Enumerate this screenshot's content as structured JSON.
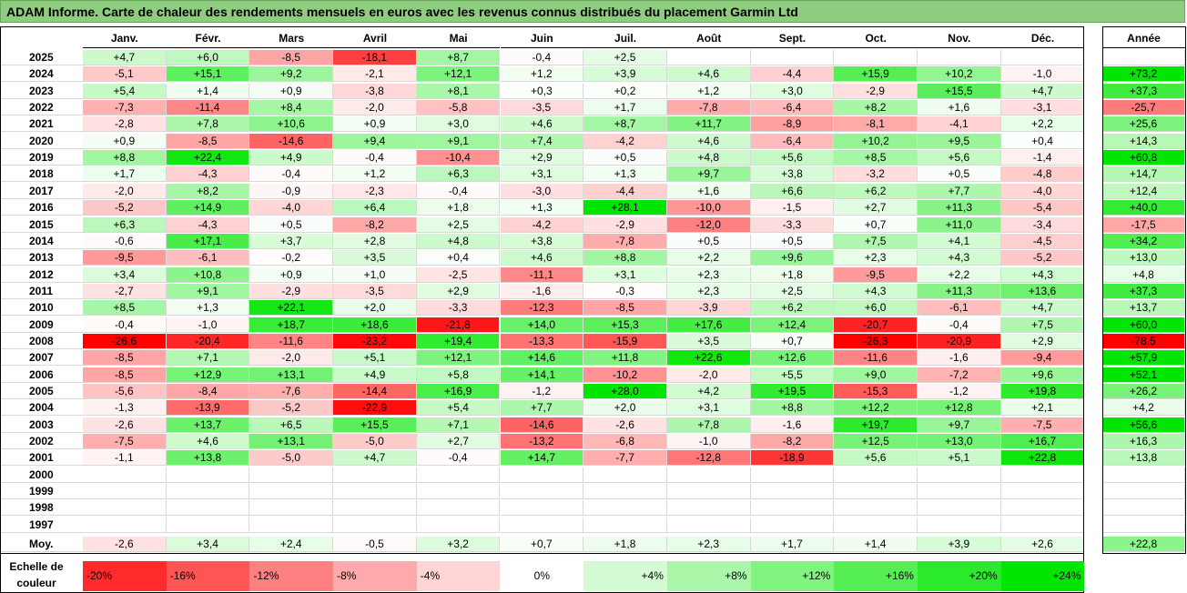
{
  "title": "ADAM Informe. Carte de chaleur des rendements mensuels en euros avec les revenus connus distribués du placement Garmin Ltd",
  "chart_data": {
    "type": "heatmap",
    "title": "ADAM Informe. Carte de chaleur des rendements mensuels en euros avec les revenus connus distribués du placement Garmin Ltd",
    "columns": [
      "Janv.",
      "Févr.",
      "Mars",
      "Avril",
      "Mai",
      "Juin",
      "Juil.",
      "Août",
      "Sept.",
      "Oct.",
      "Nov.",
      "Déc."
    ],
    "annual_header": "Année",
    "rows": [
      {
        "year": "2025",
        "values": [
          "+4,7",
          "+6,0",
          "-8,5",
          "-18,1",
          "+8,7",
          "-0,4",
          "+2,5",
          "",
          "",
          "",
          "",
          ""
        ],
        "annual": ""
      },
      {
        "year": "2024",
        "values": [
          "-5,1",
          "+15,1",
          "+9,2",
          "-2,1",
          "+12,1",
          "+1,2",
          "+3,9",
          "+4,6",
          "-4,4",
          "+15,9",
          "+10,2",
          "-1,0"
        ],
        "annual": "+73,2"
      },
      {
        "year": "2023",
        "values": [
          "+5,4",
          "+1,4",
          "+0,9",
          "-3,8",
          "+8,1",
          "+0,3",
          "+0,2",
          "+1,2",
          "+3,0",
          "-2,9",
          "+15,5",
          "+4,7"
        ],
        "annual": "+37,3"
      },
      {
        "year": "2022",
        "values": [
          "-7,3",
          "-11,4",
          "+8,4",
          "-2,0",
          "-5,8",
          "-3,5",
          "+1,7",
          "-7,8",
          "-6,4",
          "+8,2",
          "+1,6",
          "-3,1"
        ],
        "annual": "-25,7"
      },
      {
        "year": "2021",
        "values": [
          "-2,8",
          "+7,8",
          "+10,6",
          "+0,9",
          "+3,0",
          "+4,6",
          "+8,7",
          "+11,7",
          "-8,9",
          "-8,1",
          "-4,1",
          "+2,2"
        ],
        "annual": "+25,6"
      },
      {
        "year": "2020",
        "values": [
          "+0,9",
          "-8,5",
          "-14,6",
          "+9,4",
          "+9,1",
          "+7,4",
          "-4,2",
          "+4,6",
          "-6,4",
          "+10,2",
          "+9,5",
          "+0,4"
        ],
        "annual": "+14,3"
      },
      {
        "year": "2019",
        "values": [
          "+8,8",
          "+22,4",
          "+4,9",
          "-0,4",
          "-10,4",
          "+2,9",
          "+0,5",
          "+4,8",
          "+5,6",
          "+8,5",
          "+5,6",
          "-1,4"
        ],
        "annual": "+60,8"
      },
      {
        "year": "2018",
        "values": [
          "+1,7",
          "-4,3",
          "-0,4",
          "+1,2",
          "+6,3",
          "+3,1",
          "+1,3",
          "+9,7",
          "+3,8",
          "-3,2",
          "+0,5",
          "-4,8"
        ],
        "annual": "+14,7"
      },
      {
        "year": "2017",
        "values": [
          "-2,0",
          "+8,2",
          "-0,9",
          "-2,3",
          "-0,4",
          "-3,0",
          "-4,4",
          "+1,6",
          "+6,6",
          "+6,2",
          "+7,7",
          "-4,0"
        ],
        "annual": "+12,4"
      },
      {
        "year": "2016",
        "values": [
          "-5,2",
          "+14,9",
          "-4,0",
          "+6,4",
          "+1,8",
          "+1,3",
          "+28,1",
          "-10,0",
          "-1,5",
          "+2,7",
          "+11,3",
          "-5,4"
        ],
        "annual": "+40,0"
      },
      {
        "year": "2015",
        "values": [
          "+6,3",
          "-4,3",
          "+0,5",
          "-8,2",
          "+2,5",
          "-4,2",
          "-2,9",
          "-12,0",
          "-3,3",
          "+0,7",
          "+11,0",
          "-3,4"
        ],
        "annual": "-17,5"
      },
      {
        "year": "2014",
        "values": [
          "-0,6",
          "+17,1",
          "+3,7",
          "+2,8",
          "+4,8",
          "+3,8",
          "-7,8",
          "+0,5",
          "+0,5",
          "+7,5",
          "+4,1",
          "-4,5"
        ],
        "annual": "+34,2"
      },
      {
        "year": "2013",
        "values": [
          "-9,5",
          "-6,1",
          "-0,2",
          "+3,5",
          "+0,4",
          "+4,6",
          "+8,8",
          "+2,2",
          "+9,6",
          "+2,3",
          "+4,3",
          "-5,2"
        ],
        "annual": "+13,0"
      },
      {
        "year": "2012",
        "values": [
          "+3,4",
          "+10,8",
          "+0,9",
          "+1,0",
          "-2,5",
          "-11,1",
          "+3,1",
          "+2,3",
          "+1,8",
          "-9,5",
          "+2,2",
          "+4,3"
        ],
        "annual": "+4,8"
      },
      {
        "year": "2011",
        "values": [
          "-2,7",
          "+9,1",
          "-2,9",
          "-3,5",
          "+2,9",
          "-1,6",
          "-0,3",
          "+2,3",
          "+2,5",
          "+4,3",
          "+11,3",
          "+13,6"
        ],
        "annual": "+37,3"
      },
      {
        "year": "2010",
        "values": [
          "+8,5",
          "+1,3",
          "+22,1",
          "+2,0",
          "-3,3",
          "-12,3",
          "-8,5",
          "-3,9",
          "+6,2",
          "+6,0",
          "-6,1",
          "+4,7"
        ],
        "annual": "+13,7"
      },
      {
        "year": "2009",
        "values": [
          "-0,4",
          "-1,0",
          "+18,7",
          "+18,6",
          "-21,8",
          "+14,0",
          "+15,3",
          "+17,6",
          "+12,4",
          "-20,7",
          "-0,4",
          "+7,5"
        ],
        "annual": "+60,0"
      },
      {
        "year": "2008",
        "values": [
          "-26,6",
          "-20,4",
          "-11,6",
          "-23,2",
          "+19,4",
          "-13,3",
          "-15,9",
          "+3,5",
          "+0,7",
          "-26,3",
          "-20,9",
          "+2,9"
        ],
        "annual": "-78,5"
      },
      {
        "year": "2007",
        "values": [
          "-8,5",
          "+7,1",
          "-2,0",
          "+5,1",
          "+12,1",
          "+14,6",
          "+11,8",
          "+22,6",
          "+12,6",
          "-11,6",
          "-1,6",
          "-9,4"
        ],
        "annual": "+57,9"
      },
      {
        "year": "2006",
        "values": [
          "-8,5",
          "+12,9",
          "+13,1",
          "+4,9",
          "+5,8",
          "+14,1",
          "-10,2",
          "-2,0",
          "+5,5",
          "+9,0",
          "-7,2",
          "+9,6"
        ],
        "annual": "+52,1"
      },
      {
        "year": "2005",
        "values": [
          "-5,6",
          "-8,4",
          "-7,6",
          "-14,4",
          "+16,9",
          "-1,2",
          "+28,0",
          "+4,2",
          "+19,5",
          "-15,3",
          "-1,2",
          "+19,8"
        ],
        "annual": "+26,2"
      },
      {
        "year": "2004",
        "values": [
          "-1,3",
          "-13,9",
          "-5,2",
          "-22,9",
          "+5,4",
          "+7,7",
          "+2,0",
          "+3,1",
          "+8,8",
          "+12,2",
          "+12,8",
          "+2,1"
        ],
        "annual": "+4,2"
      },
      {
        "year": "2003",
        "values": [
          "-2,6",
          "+13,7",
          "+6,5",
          "+15,5",
          "+7,1",
          "-14,6",
          "-2,6",
          "+7,8",
          "-1,6",
          "+19,7",
          "+9,7",
          "-7,5"
        ],
        "annual": "+56,6"
      },
      {
        "year": "2002",
        "values": [
          "-7,5",
          "+4,6",
          "+13,1",
          "-5,0",
          "+2,7",
          "-13,2",
          "-6,8",
          "-1,0",
          "-8,2",
          "+12,5",
          "+13,0",
          "+16,7"
        ],
        "annual": "+16,3"
      },
      {
        "year": "2001",
        "values": [
          "-1,1",
          "+13,8",
          "-5,0",
          "+4,7",
          "-0,4",
          "+14,7",
          "-7,7",
          "-12,8",
          "-18,9",
          "+5,6",
          "+5,1",
          "+22,8"
        ],
        "annual": "+13,8"
      },
      {
        "year": "2000",
        "values": [
          "",
          "",
          "",
          "",
          "",
          "",
          "",
          "",
          "",
          "",
          "",
          ""
        ],
        "annual": ""
      },
      {
        "year": "1999",
        "values": [
          "",
          "",
          "",
          "",
          "",
          "",
          "",
          "",
          "",
          "",
          "",
          ""
        ],
        "annual": ""
      },
      {
        "year": "1998",
        "values": [
          "",
          "",
          "",
          "",
          "",
          "",
          "",
          "",
          "",
          "",
          "",
          ""
        ],
        "annual": ""
      },
      {
        "year": "1997",
        "values": [
          "",
          "",
          "",
          "",
          "",
          "",
          "",
          "",
          "",
          "",
          "",
          ""
        ],
        "annual": ""
      }
    ],
    "average_label": "Moy.",
    "average_values": [
      "-2,6",
      "+3,4",
      "+2,4",
      "-0,5",
      "+3,2",
      "+0,7",
      "+1,8",
      "+2,3",
      "+1,7",
      "+1,4",
      "+3,9",
      "+2,6"
    ],
    "average_annual": "+22,8",
    "legend_label": "Echelle de couleur",
    "legend_steps": [
      "-20%",
      "-16%",
      "-12%",
      "-8%",
      "-4%",
      "0%",
      "+4%",
      "+8%",
      "+12%",
      "+16%",
      "+20%",
      "+24%"
    ],
    "colors": {
      "title_bar": "#8ecd80",
      "max_red": "#ff0000",
      "max_green": "#00e600",
      "neutral": "#ffffff"
    }
  }
}
